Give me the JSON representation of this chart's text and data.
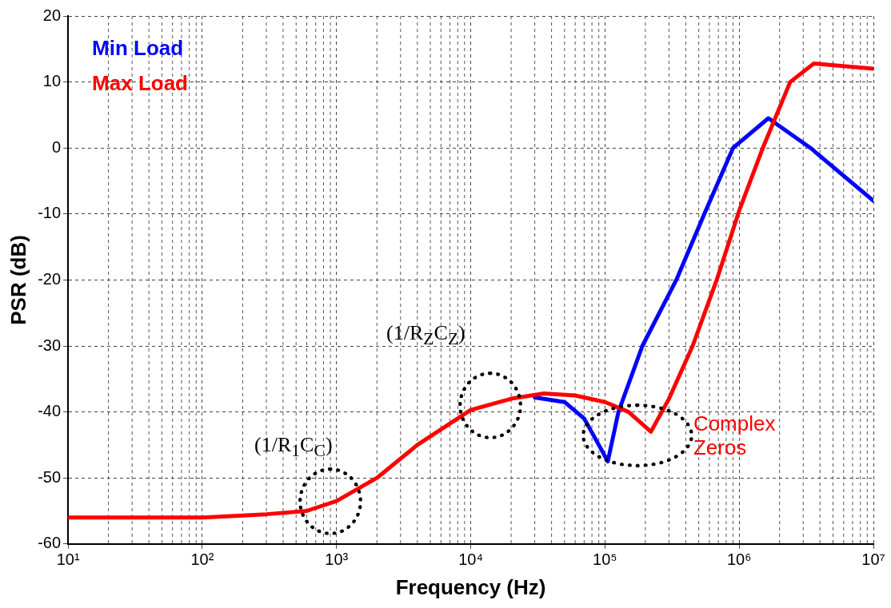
{
  "chart_data": {
    "type": "line",
    "xlabel": "Frequency (Hz)",
    "ylabel": "PSR (dB)",
    "log": "x",
    "grid": true,
    "legend": "top left",
    "xlim": [
      10,
      10000000
    ],
    "xticks": [
      {
        "value": 10,
        "label": "10¹"
      },
      {
        "value": 100,
        "label": "10²"
      },
      {
        "value": 1000,
        "label": "10³"
      },
      {
        "value": 10000,
        "label": "10⁴"
      },
      {
        "value": 100000,
        "label": "10⁵"
      },
      {
        "value": 1000000,
        "label": "10⁶"
      },
      {
        "value": 10000000,
        "label": "10⁷"
      }
    ],
    "ylim": [
      -60,
      20
    ],
    "yticks": [
      -60,
      -50,
      -40,
      -30,
      -20,
      -10,
      0,
      10,
      20
    ],
    "series": [
      {
        "name": "Min Load",
        "color": "#0000ff",
        "x": [
          30000,
          50000,
          70000,
          90000,
          105000,
          126000,
          190000,
          340000,
          550000,
          900000,
          1650000,
          3400000,
          10000000
        ],
        "values": [
          -37.8,
          -38.5,
          -41,
          -45,
          -47.5,
          -40,
          -30,
          -20,
          -10,
          0,
          4.5,
          0,
          -8
        ]
      },
      {
        "name": "Max Load",
        "color": "#ff0000",
        "x": [
          10,
          100,
          300,
          600,
          1000,
          2000,
          4000,
          10000,
          20000,
          35000,
          60000,
          100000,
          150000,
          220000,
          300000,
          450000,
          680000,
          1000000,
          1500000,
          2400000,
          3600000,
          10000000
        ],
        "values": [
          -56,
          -56,
          -55.5,
          -55,
          -53.5,
          -50,
          -45,
          -39.7,
          -38,
          -37.2,
          -37.5,
          -38.5,
          -40,
          -43,
          -38,
          -30,
          -20,
          -9.5,
          0,
          10,
          12.8,
          12
        ]
      }
    ],
    "annotations": [
      {
        "text": "(1/R$_{1}$C$_{C}$)",
        "x": 900,
        "y": -53.5
      },
      {
        "text": "(1/R$_{Z}$C$_{Z}$)",
        "x": 14000,
        "y": -39
      },
      "Complex Zeros"
    ]
  }
}
